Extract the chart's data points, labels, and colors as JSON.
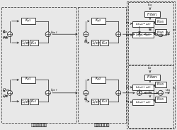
{
  "bg_color": "#e8e8e8",
  "line_color": "#222222",
  "box_color": "#ffffff",
  "dashed_color": "#444444",
  "text_color": "#111111",
  "label_outer": "外环动率控制",
  "label_inner": "内环电流控制",
  "figsize": [
    2.5,
    1.83
  ],
  "dpi": 100
}
